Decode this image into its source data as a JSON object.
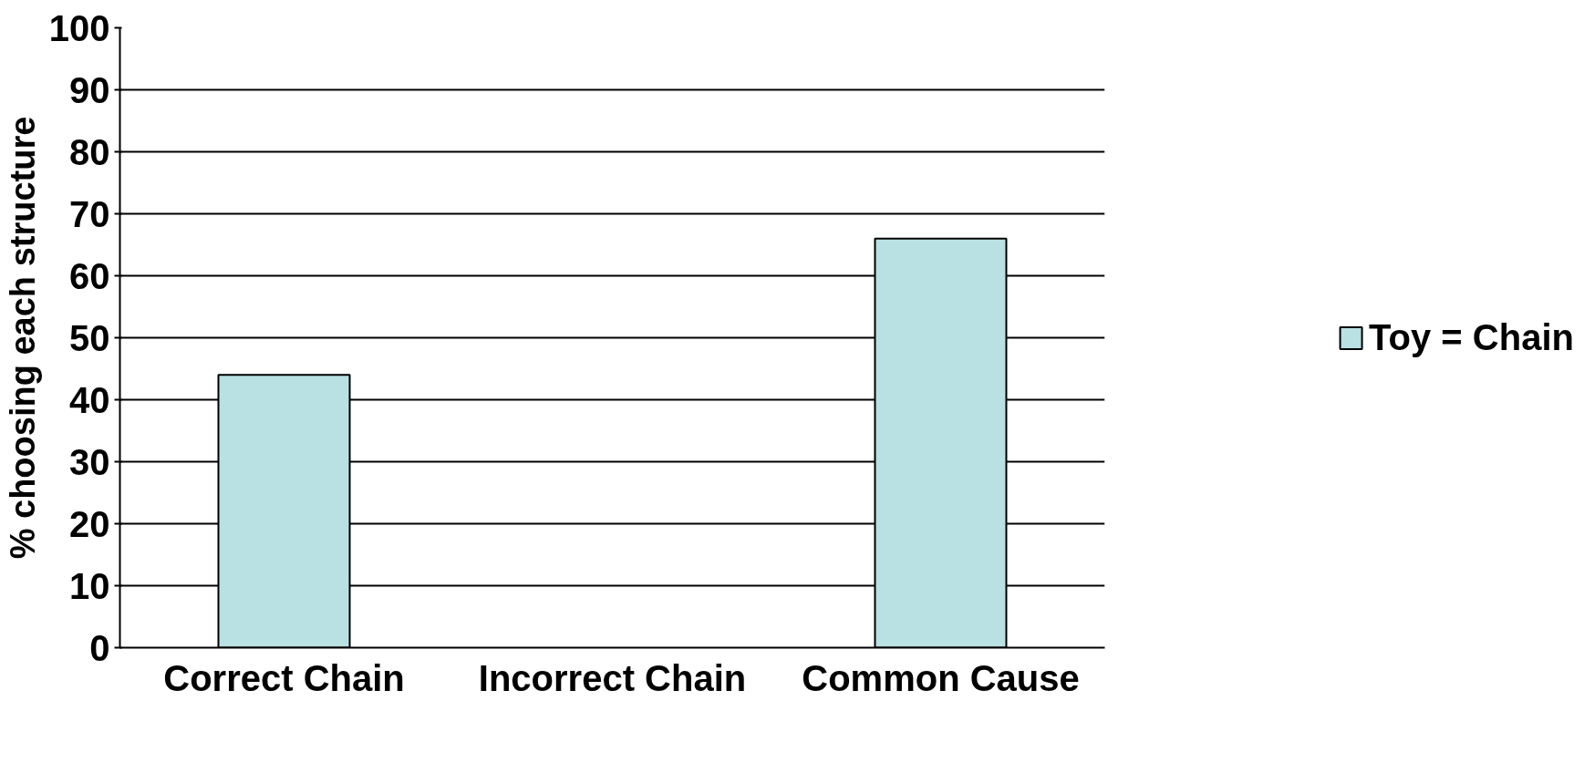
{
  "chart_data": {
    "type": "bar",
    "ylabel": "% choosing each structure",
    "categories": [
      "Correct Chain",
      "Incorrect Chain",
      "Common Cause"
    ],
    "series": [
      {
        "name": "Toy = Chain",
        "color": "#b9e0e3",
        "values": [
          44,
          0,
          66
        ]
      }
    ],
    "ylim": [
      0,
      100
    ],
    "yticks": [
      0,
      10,
      20,
      30,
      40,
      50,
      60,
      70,
      80,
      90,
      100
    ],
    "grid": "y",
    "legend": "right"
  }
}
